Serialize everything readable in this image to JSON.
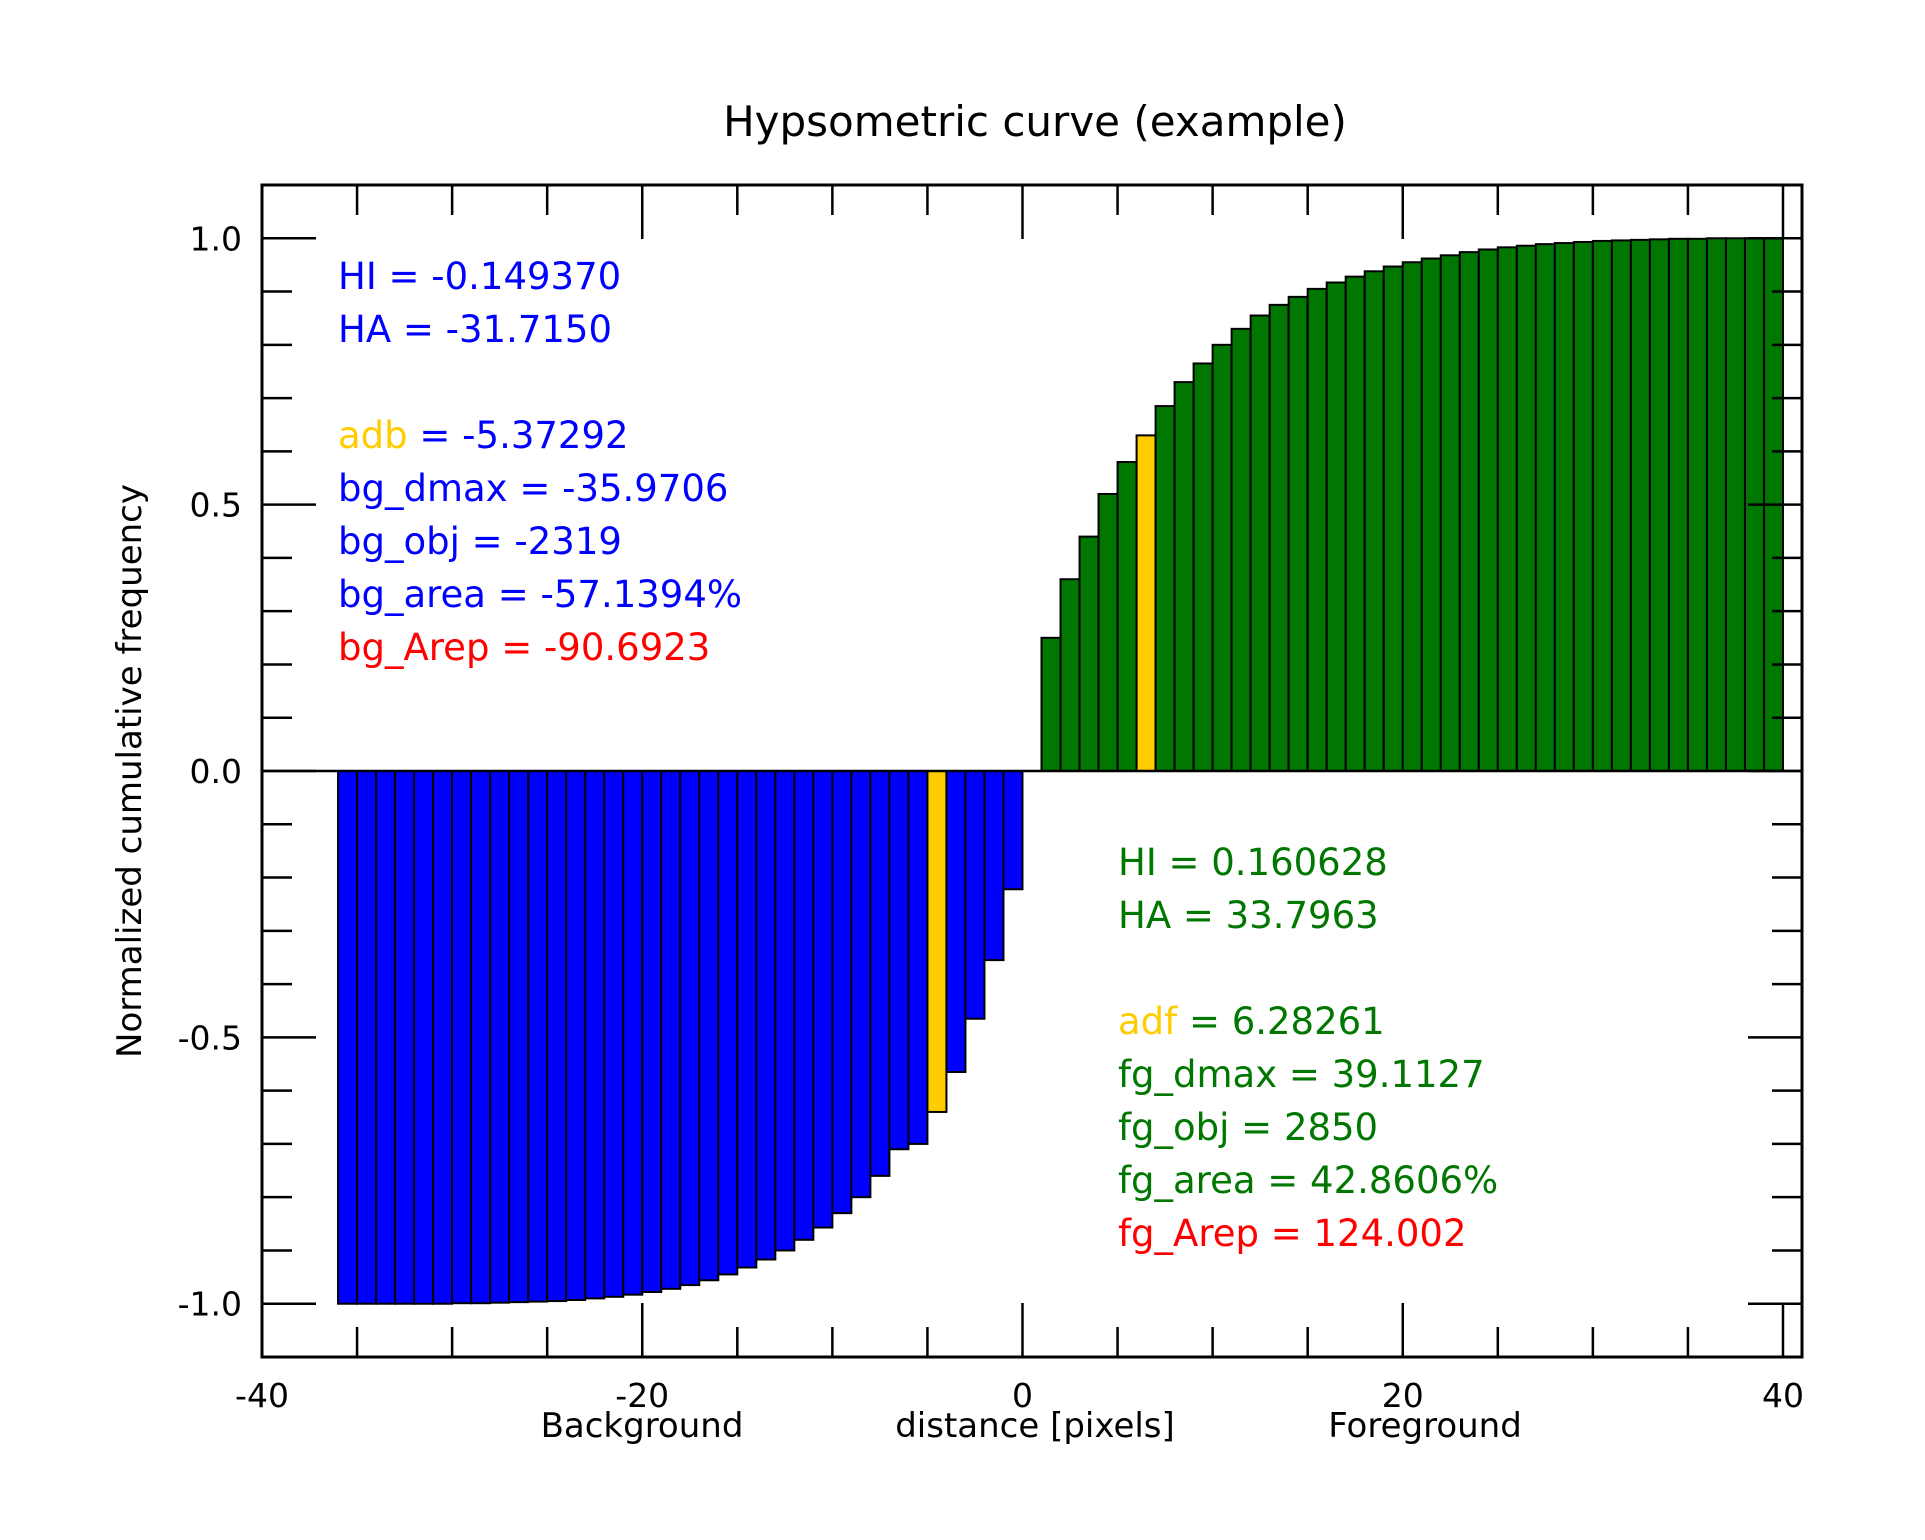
{
  "chart_data": {
    "type": "bar",
    "title": "Hypsometric curve (example)",
    "xlabel": "distance [pixels]",
    "ylabel": "Normalized cumulative frequency",
    "x_side_labels": {
      "left": "Background",
      "right": "Foreground"
    },
    "xlim": [
      -40,
      41
    ],
    "ylim": [
      -1.1,
      1.1
    ],
    "x_ticks": [
      -40,
      -20,
      0,
      20,
      40
    ],
    "y_ticks": [
      -1.0,
      -0.5,
      0.0,
      0.5,
      1.0
    ],
    "y_tick_labels": [
      "-1.0",
      "-0.5",
      "0.0",
      "0.5",
      "1.0"
    ],
    "grid": false,
    "colors": {
      "background": "#0000ff",
      "foreground": "#007700",
      "highlight": "#ffcc00",
      "red": "#ff0000"
    },
    "series": [
      {
        "group": "background",
        "x": [
          -36,
          -35,
          -34,
          -33,
          -32,
          -31,
          -30,
          -29,
          -28,
          -27,
          -26,
          -25,
          -24,
          -23,
          -22,
          -21,
          -20,
          -19,
          -18,
          -17,
          -16,
          -15,
          -14,
          -13,
          -12,
          -11,
          -10,
          -9,
          -8,
          -7,
          -6,
          -5,
          -4,
          -3,
          -2,
          -1
        ],
        "values": [
          -1.0,
          -1.0,
          -1.0,
          -1.0,
          -1.0,
          -1.0,
          -0.999,
          -0.999,
          -0.998,
          -0.997,
          -0.996,
          -0.995,
          -0.993,
          -0.99,
          -0.987,
          -0.983,
          -0.978,
          -0.972,
          -0.965,
          -0.956,
          -0.945,
          -0.932,
          -0.917,
          -0.9,
          -0.88,
          -0.857,
          -0.83,
          -0.8,
          -0.76,
          -0.71,
          -0.7,
          -0.64,
          -0.565,
          -0.465,
          -0.355,
          -0.222
        ],
        "highlight_x": -5
      },
      {
        "group": "foreground",
        "x": [
          1,
          2,
          3,
          4,
          5,
          6,
          7,
          8,
          9,
          10,
          11,
          12,
          13,
          14,
          15,
          16,
          17,
          18,
          19,
          20,
          21,
          22,
          23,
          24,
          25,
          26,
          27,
          28,
          29,
          30,
          31,
          32,
          33,
          34,
          35,
          36,
          37,
          38,
          39
        ],
        "values": [
          0.25,
          0.36,
          0.44,
          0.52,
          0.58,
          0.63,
          0.685,
          0.73,
          0.765,
          0.8,
          0.83,
          0.855,
          0.875,
          0.89,
          0.905,
          0.917,
          0.928,
          0.938,
          0.947,
          0.955,
          0.962,
          0.968,
          0.974,
          0.979,
          0.983,
          0.986,
          0.989,
          0.991,
          0.993,
          0.995,
          0.996,
          0.997,
          0.998,
          0.999,
          0.999,
          1.0,
          1.0,
          1.0,
          1.0
        ],
        "highlight_x": 6
      }
    ],
    "annotations": {
      "background": [
        {
          "text": "HI = -0.149370"
        },
        {
          "text": "HA = -31.7150"
        },
        {
          "key": "adb",
          "text": " = -5.37292"
        },
        {
          "text": "bg_dmax = -35.9706"
        },
        {
          "text": "bg_obj = -2319"
        },
        {
          "text": "bg_area = -57.1394%"
        },
        {
          "text": "bg_Arep = -90.6923",
          "red": true
        }
      ],
      "foreground": [
        {
          "text": "HI = 0.160628"
        },
        {
          "text": "HA = 33.7963"
        },
        {
          "key": "adf",
          "text": " = 6.28261"
        },
        {
          "text": "fg_dmax = 39.1127"
        },
        {
          "text": "fg_obj = 2850"
        },
        {
          "text": "fg_area = 42.8606%"
        },
        {
          "text": "fg_Arep = 124.002",
          "red": true
        }
      ]
    }
  }
}
